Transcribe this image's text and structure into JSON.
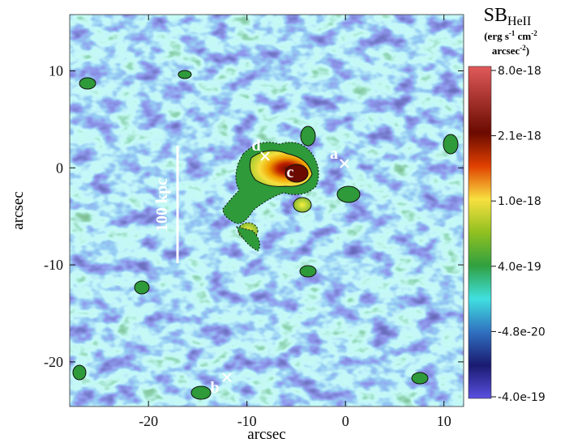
{
  "chart_data": {
    "type": "image",
    "xlabel": "arcsec",
    "ylabel": "arcsec",
    "xlim": [
      -28,
      12
    ],
    "ylim": [
      -24.6,
      15.8
    ],
    "xticks": [
      -20,
      -10,
      0,
      10
    ],
    "yticks": [
      -20,
      -10,
      0,
      10
    ],
    "colorbar": {
      "label": "SB",
      "label_sub": "HeII",
      "units": [
        "(erg s",
        "-1",
        " cm",
        "-2",
        "arcsec",
        "-2",
        ")"
      ],
      "ticks": [
        {
          "value": 8e-18,
          "label": "8.0e-18"
        },
        {
          "value": 2.1e-18,
          "label": "2.1e-18"
        },
        {
          "value": 1e-18,
          "label": "1.0e-18"
        },
        {
          "value": 4e-19,
          "label": "4.0e-19"
        },
        {
          "value": -4.8e-20,
          "label": "-4.8e-20"
        },
        {
          "value": -4e-19,
          "label": "-4.0e-19"
        }
      ]
    },
    "annotations": [
      "a",
      "b",
      "c",
      "d"
    ],
    "scalebar_label": "100 kpc"
  }
}
